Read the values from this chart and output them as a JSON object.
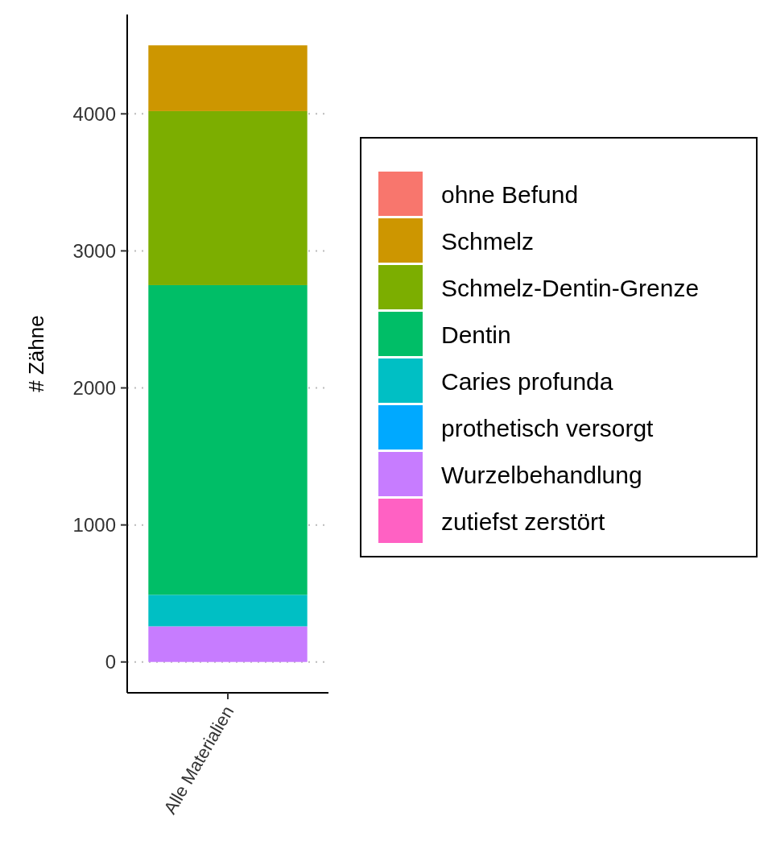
{
  "chart_data": {
    "type": "bar",
    "ylabel": "# Zähne",
    "categories": [
      "Alle Materialien"
    ],
    "stacked": true,
    "series": [
      {
        "name": "zutiefst zerstört",
        "color": "#ff61c3",
        "values": [
          0
        ]
      },
      {
        "name": "Wurzelbehandlung",
        "color": "#c77cff",
        "values": [
          260
        ]
      },
      {
        "name": "prothetisch versorgt",
        "color": "#00a9ff",
        "values": [
          0
        ]
      },
      {
        "name": "Caries profunda",
        "color": "#00bfc4",
        "values": [
          230
        ]
      },
      {
        "name": "Dentin",
        "color": "#00be67",
        "values": [
          2260
        ]
      },
      {
        "name": "Schmelz-Dentin-Grenze",
        "color": "#7cae00",
        "values": [
          1270
        ]
      },
      {
        "name": "Schmelz",
        "color": "#cd9600",
        "values": [
          480
        ]
      },
      {
        "name": "ohne Befund",
        "color": "#f8766d",
        "values": [
          0
        ]
      }
    ],
    "ylim": [
      -225,
      4725
    ],
    "yticks": [
      0,
      1000,
      2000,
      3000,
      4000
    ],
    "grid": "y",
    "legend": "right"
  }
}
